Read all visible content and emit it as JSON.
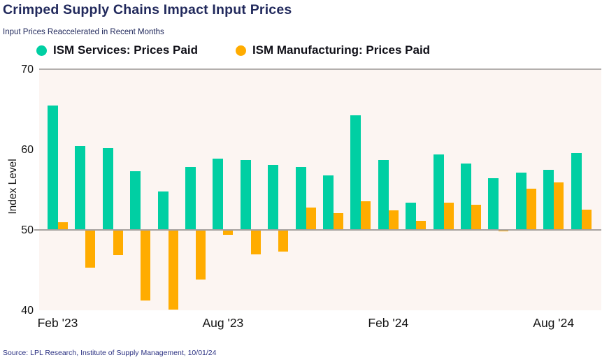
{
  "header": {
    "title": "Crimped Supply Chains Impact Input Prices",
    "subtitle": "Input Prices Reaccelerated in Recent Months"
  },
  "legend": [
    {
      "label": "ISM Services: Prices Paid",
      "color": "#00CFA3"
    },
    {
      "label": "ISM Manufacturing: Prices Paid",
      "color": "#FFAC00"
    }
  ],
  "chart_data": {
    "type": "bar",
    "title": "Crimped Supply Chains Impact Input Prices",
    "subtitle": "Input Prices Reaccelerated in Recent Months",
    "ylabel": "Index Level",
    "xlabel": "",
    "ylim": [
      40,
      70
    ],
    "yticks": [
      70,
      60,
      50,
      40
    ],
    "baseline": 50,
    "gridline_at": 50,
    "grid": "single-line-at-50",
    "legend_position": "top",
    "plot_background": "#FCF5F2",
    "x": [
      "Feb '23",
      "Mar '23",
      "Apr '23",
      "May '23",
      "Jun '23",
      "Jul '23",
      "Aug '23",
      "Sep '23",
      "Oct '23",
      "Nov '23",
      "Dec '23",
      "Jan '24",
      "Feb '24",
      "Mar '24",
      "Apr '24",
      "May '24",
      "Jun '24",
      "Jul '24",
      "Aug '24",
      "Sep '24"
    ],
    "xticks": [
      {
        "label": "Feb '23",
        "month_index": 0
      },
      {
        "label": "Aug '23",
        "month_index": 6
      },
      {
        "label": "Feb '24",
        "month_index": 12
      },
      {
        "label": "Aug '24",
        "month_index": 18
      }
    ],
    "series": [
      {
        "name": "ISM Services: Prices Paid",
        "color": "#00CFA3",
        "values": [
          65.5,
          60.4,
          60.2,
          57.3,
          54.8,
          57.8,
          58.9,
          58.7,
          58.1,
          57.8,
          56.8,
          64.3,
          58.7,
          53.4,
          59.4,
          58.3,
          56.4,
          57.1,
          57.5,
          59.6
        ]
      },
      {
        "name": "ISM Manufacturing: Prices Paid",
        "color": "#FFAC00",
        "values": [
          51.0,
          45.3,
          46.9,
          41.2,
          40.1,
          43.8,
          49.4,
          47.0,
          47.3,
          52.8,
          52.1,
          53.6,
          52.4,
          51.1,
          53.4,
          53.1,
          49.8,
          55.1,
          55.9,
          52.5
        ]
      }
    ]
  },
  "source": "Source: LPL Research, Institute of Supply Management, 10/01/24"
}
